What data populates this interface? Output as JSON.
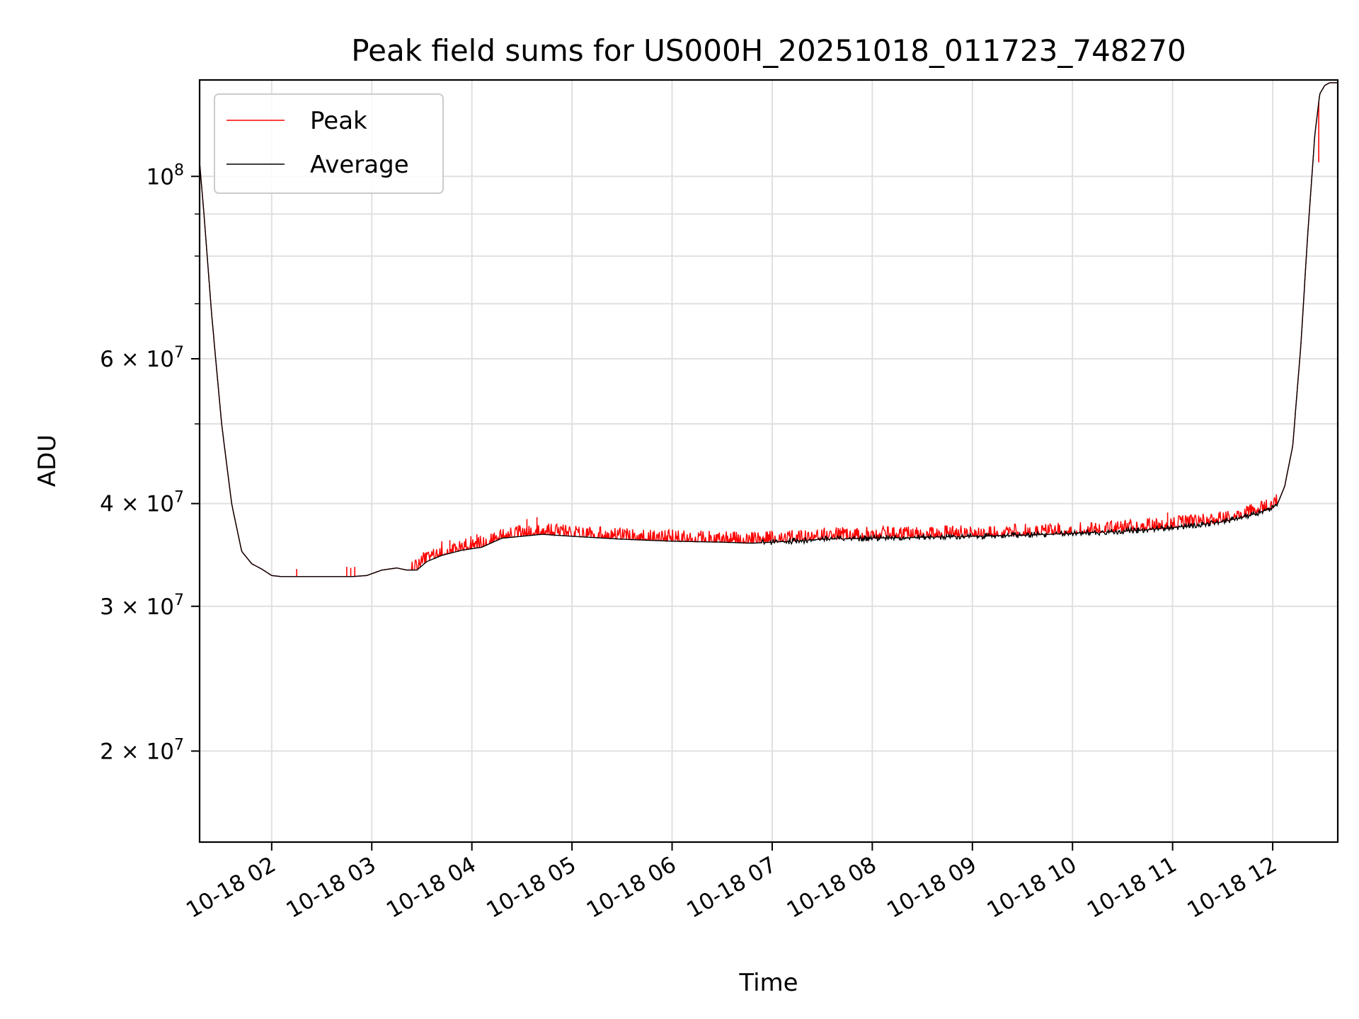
{
  "chart_data": {
    "type": "line",
    "title": "Peak field sums for US000H_20251018_011723_748270",
    "xlabel": "Time",
    "ylabel": "ADU",
    "yscale": "log",
    "grid": true,
    "legend_position": "top-left",
    "x_unit": "hours since 10-18 00:00",
    "xlim": [
      1.28,
      12.65
    ],
    "ylim": [
      15500000,
      131000000
    ],
    "x_ticks": [
      {
        "value": 2,
        "label": "10-18 02"
      },
      {
        "value": 3,
        "label": "10-18 03"
      },
      {
        "value": 4,
        "label": "10-18 04"
      },
      {
        "value": 5,
        "label": "10-18 05"
      },
      {
        "value": 6,
        "label": "10-18 06"
      },
      {
        "value": 7,
        "label": "10-18 07"
      },
      {
        "value": 8,
        "label": "10-18 08"
      },
      {
        "value": 9,
        "label": "10-18 09"
      },
      {
        "value": 10,
        "label": "10-18 10"
      },
      {
        "value": 11,
        "label": "10-18 11"
      },
      {
        "value": 12,
        "label": "10-18 12"
      }
    ],
    "y_ticks": [
      {
        "value": 100000000,
        "mant": "",
        "base": "10",
        "exp": "8"
      },
      {
        "value": 60000000,
        "mant": "6 × ",
        "base": "10",
        "exp": "7"
      },
      {
        "value": 40000000,
        "mant": "4 × ",
        "base": "10",
        "exp": "7"
      },
      {
        "value": 30000000,
        "mant": "3 × ",
        "base": "10",
        "exp": "7"
      },
      {
        "value": 20000000,
        "mant": "2 × ",
        "base": "10",
        "exp": "7"
      }
    ],
    "y_minor_ticks": [
      50000000,
      70000000,
      80000000,
      90000000
    ],
    "series": [
      {
        "name": "Peak",
        "color": "#ff0000",
        "noise_range": [
          0,
          1200000
        ],
        "noise_start": 3.4,
        "spikes": [
          {
            "x": 2.25,
            "y": 33300000
          },
          {
            "x": 2.75,
            "y": 33500000
          },
          {
            "x": 2.79,
            "y": 33400000
          },
          {
            "x": 2.83,
            "y": 33500000
          },
          {
            "x": 3.7,
            "y": 36000000
          },
          {
            "x": 3.78,
            "y": 36100000
          },
          {
            "x": 3.99,
            "y": 36500000
          },
          {
            "x": 4.05,
            "y": 36700000
          },
          {
            "x": 4.55,
            "y": 38300000
          },
          {
            "x": 4.65,
            "y": 38500000
          },
          {
            "x": 10.95,
            "y": 39000000
          },
          {
            "x": 12.46,
            "y": 104000000
          }
        ]
      },
      {
        "name": "Average",
        "color": "#000000",
        "noise_range": [
          -300000,
          300000
        ],
        "noise_start": 6.9,
        "x": [
          1.28,
          1.33,
          1.4,
          1.5,
          1.6,
          1.7,
          1.8,
          1.9,
          2.0,
          2.1,
          2.3,
          2.5,
          2.8,
          2.95,
          3.1,
          3.25,
          3.35,
          3.45,
          3.55,
          3.7,
          3.9,
          4.1,
          4.3,
          4.5,
          4.7,
          5.0,
          5.5,
          6.0,
          6.5,
          6.8,
          7.0,
          7.5,
          8.0,
          8.5,
          9.0,
          9.5,
          10.0,
          10.5,
          10.9,
          11.2,
          11.5,
          11.8,
          12.0,
          12.05,
          12.12,
          12.2,
          12.28,
          12.35,
          12.42,
          12.47,
          12.52,
          12.57,
          12.65
        ],
        "y": [
          104000000,
          88000000,
          68000000,
          50000000,
          40000000,
          35000000,
          33800000,
          33300000,
          32700000,
          32600000,
          32600000,
          32600000,
          32600000,
          32700000,
          33200000,
          33400000,
          33200000,
          33200000,
          34000000,
          34600000,
          35100000,
          35400000,
          36300000,
          36500000,
          36700000,
          36500000,
          36200000,
          36000000,
          35900000,
          35800000,
          35900000,
          36200000,
          36300000,
          36400000,
          36500000,
          36600000,
          36800000,
          37000000,
          37300000,
          37600000,
          38000000,
          38800000,
          39500000,
          40000000,
          42000000,
          47000000,
          62000000,
          85000000,
          112000000,
          126000000,
          129000000,
          130000000,
          130000000
        ]
      }
    ]
  }
}
